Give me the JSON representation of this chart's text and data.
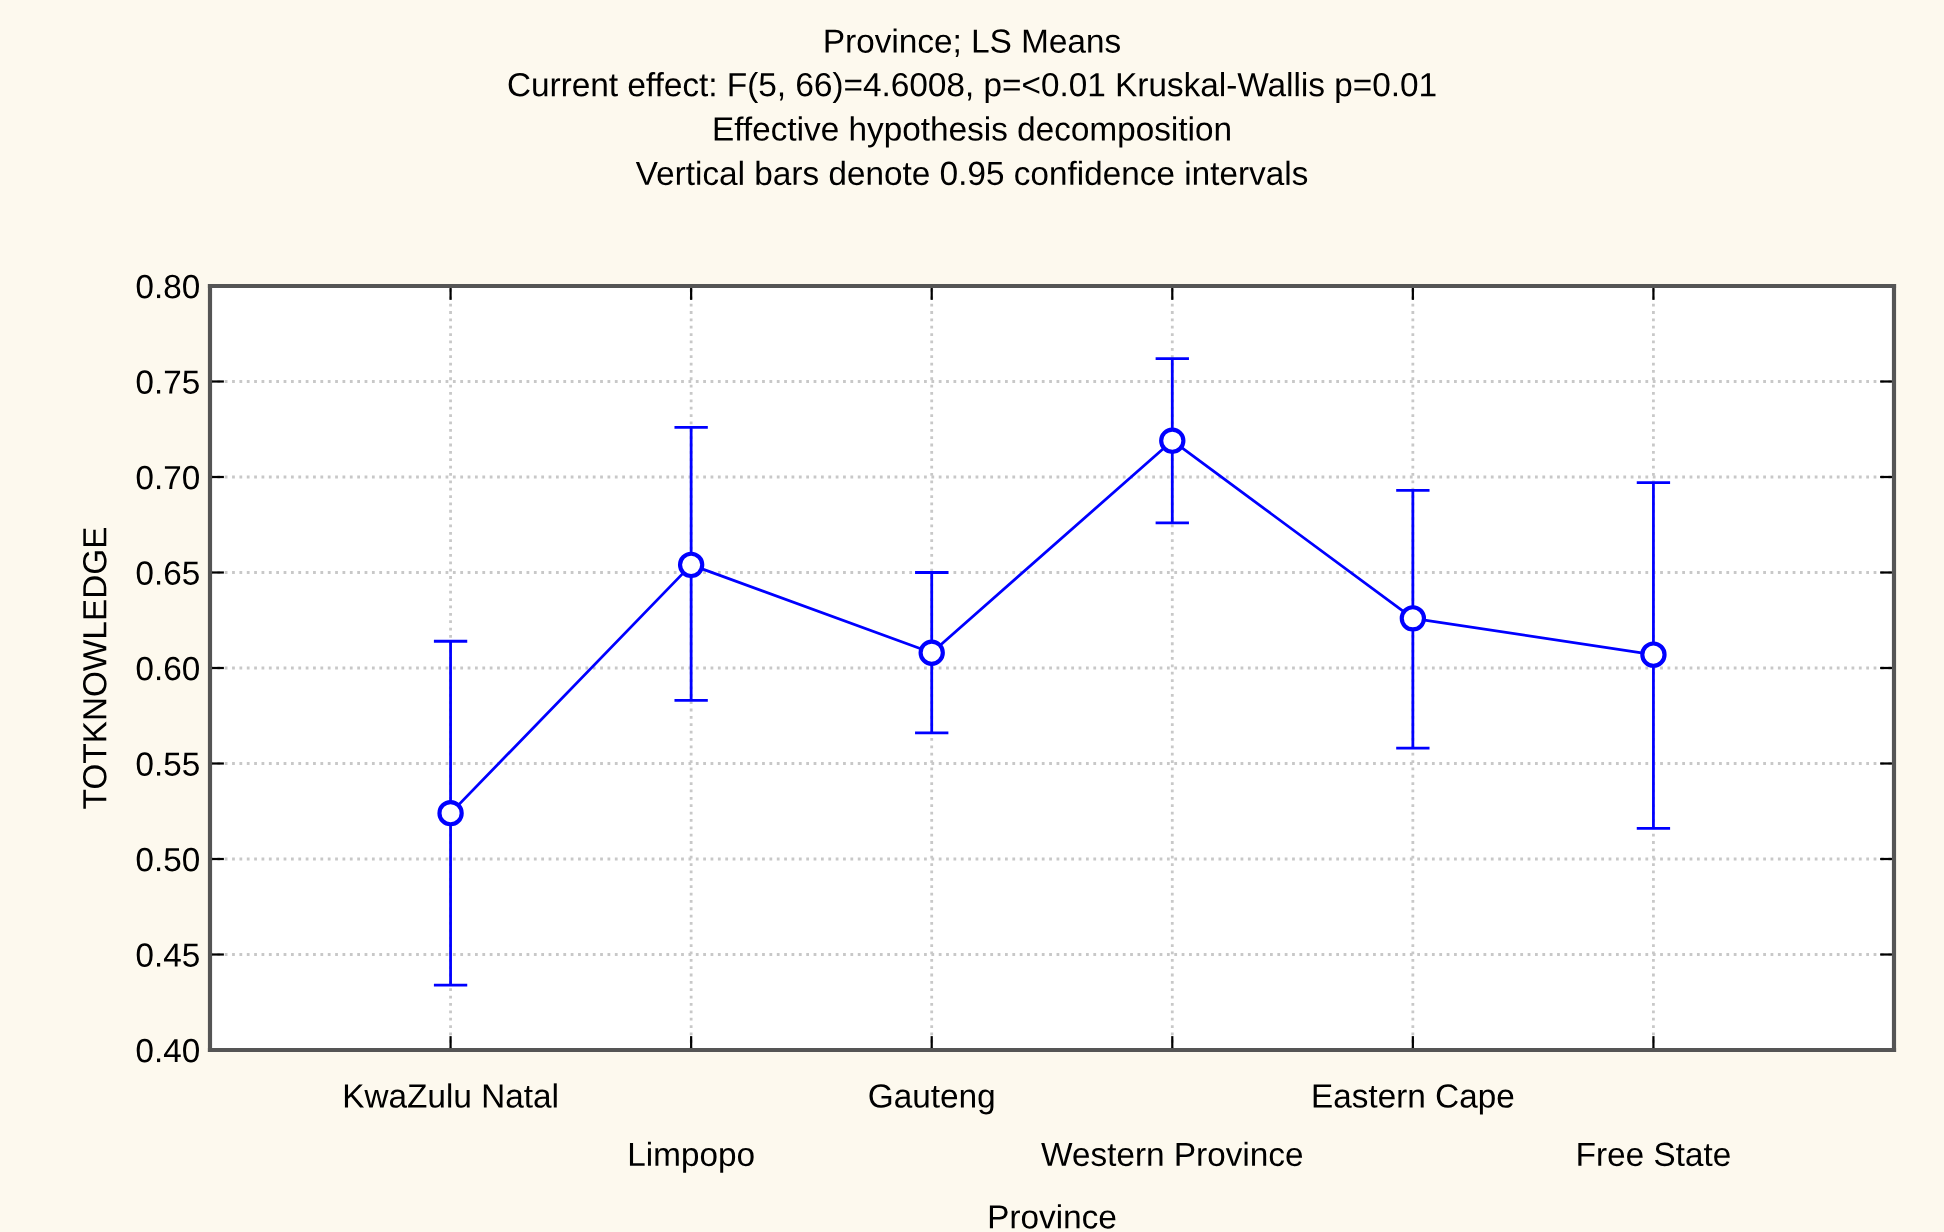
{
  "chart_data": {
    "type": "line",
    "title": "Province; LS Means",
    "subtitle": "Current effect: F(5, 66)=4.6008, p=<0.01 Kruskal-Wallis p=0.01\nEffective hypothesis decomposition\nVertical bars denote 0.95 confidence intervals",
    "xlabel": "Province",
    "ylabel": "TOTKNOWLEDGE",
    "categories": [
      "KwaZulu Natal",
      "Limpopo",
      "Gauteng",
      "Western Province",
      "Eastern Cape",
      "Free State"
    ],
    "series": [
      {
        "color": "#0000ff",
        "values": [
          0.524,
          0.654,
          0.608,
          0.719,
          0.626,
          0.607
        ],
        "errors": [
          [
            0.434,
            0.614
          ],
          [
            0.583,
            0.726
          ],
          [
            0.566,
            0.65
          ],
          [
            0.676,
            0.762
          ],
          [
            0.558,
            0.693
          ],
          [
            0.516,
            0.697
          ]
        ]
      }
    ],
    "ylim": [
      0.4,
      0.8
    ],
    "yticks": [
      {
        "value": 0.4,
        "label": "0.40"
      },
      {
        "value": 0.45,
        "label": "0.45"
      },
      {
        "value": 0.5,
        "label": "0.50"
      },
      {
        "value": 0.55,
        "label": "0.55"
      },
      {
        "value": 0.6,
        "label": "0.60"
      },
      {
        "value": 0.65,
        "label": "0.65"
      },
      {
        "value": 0.7,
        "label": "0.70"
      },
      {
        "value": 0.75,
        "label": "0.75"
      },
      {
        "value": 0.8,
        "label": "0.80"
      }
    ],
    "grid": true,
    "marker": "circle",
    "line_style": "solid"
  }
}
